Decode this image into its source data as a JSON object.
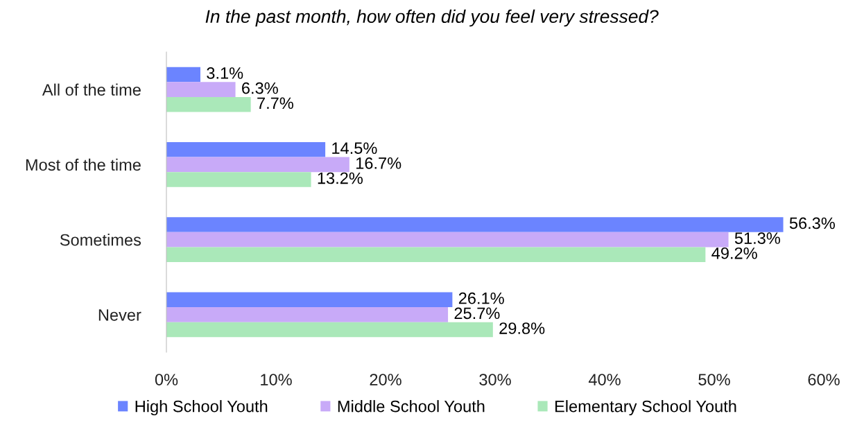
{
  "chart_data": {
    "type": "bar",
    "orientation": "horizontal",
    "title": "In the past month, how often did you feel very stressed?",
    "categories": [
      "All of the time",
      "Most of the time",
      "Sometimes",
      "Never"
    ],
    "series": [
      {
        "name": "High School Youth",
        "color": "#6b84ff",
        "values": [
          3.1,
          14.5,
          56.3,
          26.1
        ],
        "value_labels": [
          "3.1%",
          "14.5%",
          "56.3%",
          "26.1%"
        ]
      },
      {
        "name": "Middle School Youth",
        "color": "#c8aaf8",
        "values": [
          6.3,
          16.7,
          51.3,
          25.7
        ],
        "value_labels": [
          "6.3%",
          "16.7%",
          "51.3%",
          "25.7%"
        ]
      },
      {
        "name": "Elementary School Youth",
        "color": "#aae8b9",
        "values": [
          7.7,
          13.2,
          49.2,
          29.8
        ],
        "value_labels": [
          "7.7%",
          "13.2%",
          "49.2%",
          "29.8%"
        ]
      }
    ],
    "xlim": [
      0,
      60
    ],
    "xticks": [
      {
        "value": 0,
        "label": "0%"
      },
      {
        "value": 10,
        "label": "10%"
      },
      {
        "value": 20,
        "label": "20%"
      },
      {
        "value": 30,
        "label": "30%"
      },
      {
        "value": 40,
        "label": "40%"
      },
      {
        "value": 50,
        "label": "50%"
      },
      {
        "value": 60,
        "label": "60%"
      }
    ],
    "grid": false,
    "legend": "bottom"
  }
}
